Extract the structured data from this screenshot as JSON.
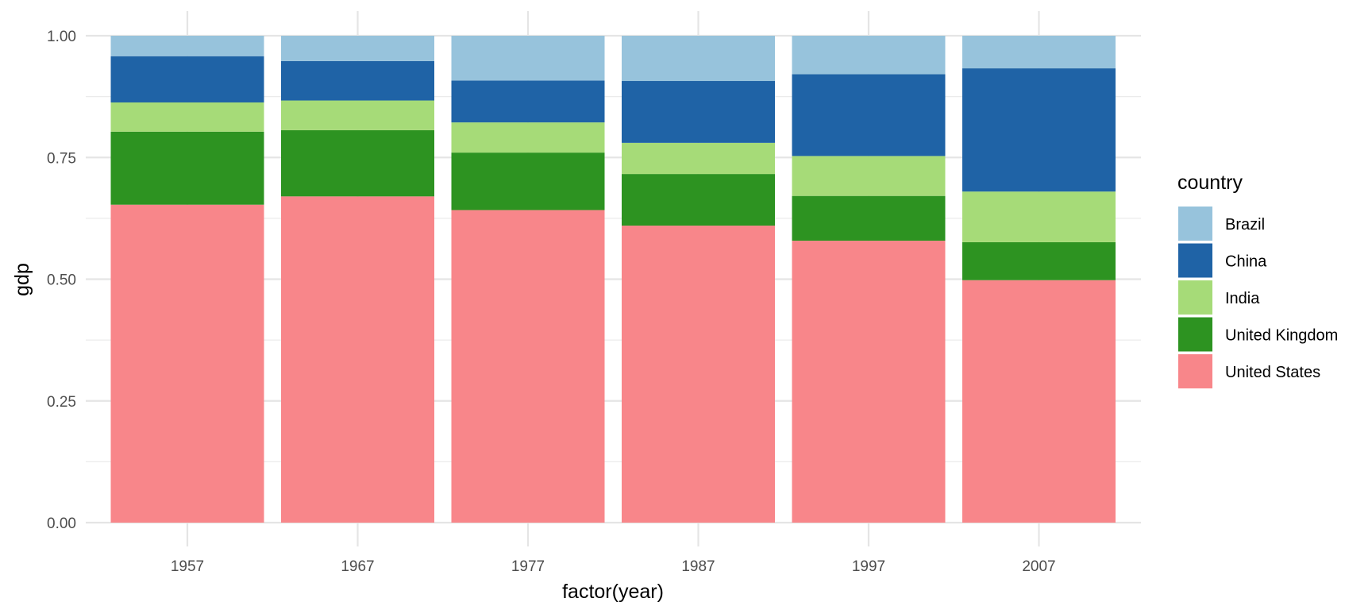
{
  "chart_data": {
    "type": "bar",
    "stacked": true,
    "position": "fill",
    "xlabel": "factor(year)",
    "ylabel": "gdp",
    "ylim": [
      0,
      1
    ],
    "yticks": [
      "0.00",
      "0.25",
      "0.50",
      "0.75",
      "1.00"
    ],
    "categories": [
      "1957",
      "1967",
      "1977",
      "1987",
      "1997",
      "2007"
    ],
    "legend": {
      "title": "country",
      "placement": "right"
    },
    "series": [
      {
        "name": "United States",
        "color": "#F8868A",
        "values": [
          0.653,
          0.67,
          0.642,
          0.61,
          0.579,
          0.498
        ]
      },
      {
        "name": "United Kingdom",
        "color": "#2D9321",
        "values": [
          0.15,
          0.136,
          0.118,
          0.106,
          0.092,
          0.078
        ]
      },
      {
        "name": "India",
        "color": "#A6DB78",
        "values": [
          0.06,
          0.061,
          0.062,
          0.064,
          0.082,
          0.104
        ]
      },
      {
        "name": "China",
        "color": "#1F63A6",
        "values": [
          0.095,
          0.081,
          0.086,
          0.127,
          0.168,
          0.253
        ]
      },
      {
        "name": "Brazil",
        "color": "#97C3DC",
        "values": [
          0.042,
          0.052,
          0.092,
          0.093,
          0.079,
          0.067
        ]
      }
    ],
    "legend_order": [
      "Brazil",
      "China",
      "India",
      "United Kingdom",
      "United States"
    ],
    "grid": true
  }
}
